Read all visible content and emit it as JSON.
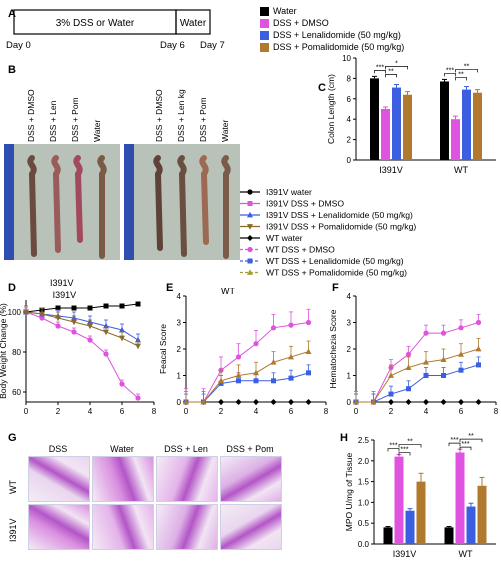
{
  "panels": {
    "A": "A",
    "B": "B",
    "C": "C",
    "D": "D",
    "E": "E",
    "F": "F",
    "G": "G",
    "H": "H"
  },
  "timeline": {
    "segment1": "3% DSS or Water",
    "segment2": "Water",
    "day0": "Day 0",
    "day6": "Day 6",
    "day7": "Day 7"
  },
  "legend_top": [
    {
      "label": "Water",
      "color": "#000000"
    },
    {
      "label": "DSS + DMSO",
      "color": "#e052e0"
    },
    {
      "label": "DSS + Lenalidomide (50 mg/kg)",
      "color": "#3b5fe0"
    },
    {
      "label": "DSS + Pomalidomide (50 mg/kg)",
      "color": "#b07a2e"
    }
  ],
  "photo_labels": {
    "left": [
      "DSS + DMSO",
      "DSS + Len",
      "DSS + Pom",
      "Water"
    ],
    "right": [
      "DSS + DMSO",
      "DSS + Len kg",
      "DSS + Pom",
      "Water"
    ],
    "caption": "I391V"
  },
  "legend_mid": [
    {
      "label": "I391V water",
      "color": "#000000",
      "marker": "circle"
    },
    {
      "label": "I391V DSS + DMSO",
      "color": "#e052e0",
      "marker": "square"
    },
    {
      "label": "I391V DSS + Lenalidomide (50 mg/kg)",
      "color": "#3b5fe0",
      "marker": "triangle"
    },
    {
      "label": "I391V DSS + Pomalidomide (50 mg/kg)",
      "color": "#8a6a2a",
      "marker": "tri-down"
    },
    {
      "label": "WT water",
      "color": "#000000",
      "marker": "diamond"
    },
    {
      "label": "WT DSS + DMSO",
      "color": "#e052e0",
      "marker": "circle-dash"
    },
    {
      "label": "WT DSS + Lenalidomide (50 mg/kg)",
      "color": "#3b5fe0",
      "marker": "square-dash"
    },
    {
      "label": "WT DSS + Pomalidomide (50 mg/kg)",
      "color": "#a89a3a",
      "marker": "triangle-dash"
    }
  ],
  "histology": {
    "cols": [
      "DSS",
      "Water",
      "DSS + Len",
      "DSS + Pom"
    ],
    "rows": [
      "WT",
      "I391V"
    ]
  },
  "chart_data": [
    {
      "id": "C",
      "type": "bar",
      "ylabel": "Colon Length (cm)",
      "ylim": [
        0,
        10
      ],
      "yticks": [
        0,
        2,
        4,
        6,
        8,
        10
      ],
      "categories": [
        "I391V",
        "WT"
      ],
      "series": [
        {
          "name": "Water",
          "color": "#000000",
          "values": [
            8.0,
            7.7
          ],
          "err": [
            0.2,
            0.2
          ]
        },
        {
          "name": "DSS + DMSO",
          "color": "#e052e0",
          "values": [
            5.0,
            4.0
          ],
          "err": [
            0.2,
            0.3
          ]
        },
        {
          "name": "DSS + Lenalidomide (50 mg/kg)",
          "color": "#3b5fe0",
          "values": [
            7.1,
            6.9
          ],
          "err": [
            0.3,
            0.3
          ]
        },
        {
          "name": "DSS + Pomalidomide (50 mg/kg)",
          "color": "#b07a2e",
          "values": [
            6.4,
            6.6
          ],
          "err": [
            0.3,
            0.3
          ]
        }
      ],
      "annotations": [
        "***",
        "**",
        "*",
        "***",
        "**",
        "**"
      ]
    },
    {
      "id": "D",
      "type": "line",
      "title": "I391V",
      "ylabel": "Body Weight Change (%)",
      "xlim": [
        0,
        8
      ],
      "xticks": [
        0,
        2,
        4,
        6,
        8
      ],
      "ylim": [
        55,
        106
      ],
      "yticks": [
        60,
        80,
        100
      ],
      "x": [
        0,
        1,
        2,
        3,
        4,
        5,
        6,
        7
      ],
      "series": [
        {
          "name": "I391V water",
          "color": "#000000",
          "marker": "square",
          "values": [
            100,
            101,
            102,
            102,
            102,
            103,
            103,
            104
          ],
          "err": 1
        },
        {
          "name": "I391V DSS + DMSO",
          "color": "#e052e0",
          "marker": "circle",
          "values": [
            100,
            97,
            93,
            90,
            86,
            79,
            64,
            57
          ],
          "err": 2
        },
        {
          "name": "I391V DSS + Lenalidomide (50 mg/kg)",
          "color": "#3b5fe0",
          "marker": "triangle",
          "values": [
            100,
            99,
            98,
            97,
            95,
            93,
            91,
            86
          ],
          "err": 3
        },
        {
          "name": "I391V DSS + Pomalidomide (50 mg/kg)",
          "color": "#8a6a2a",
          "marker": "tri-down",
          "values": [
            100,
            99,
            97,
            95,
            93,
            90,
            87,
            83
          ],
          "err": 3
        }
      ]
    },
    {
      "id": "E",
      "type": "line",
      "title": "WT",
      "ylabel": "Feacal Score",
      "xlim": [
        0,
        8
      ],
      "xticks": [
        0,
        2,
        4,
        6,
        8
      ],
      "ylim": [
        0,
        4
      ],
      "yticks": [
        0,
        1,
        2,
        3,
        4
      ],
      "x": [
        0,
        1,
        2,
        3,
        4,
        5,
        6,
        7
      ],
      "series": [
        {
          "name": "WT water",
          "color": "#000000",
          "marker": "diamond",
          "values": [
            0,
            0,
            0,
            0,
            0,
            0,
            0,
            0
          ],
          "err": 0
        },
        {
          "name": "WT DSS + DMSO",
          "color": "#e052e0",
          "marker": "circle",
          "values": [
            0,
            0,
            1.2,
            1.7,
            2.2,
            2.8,
            2.9,
            3.0
          ],
          "err": 0.5
        },
        {
          "name": "WT DSS + Lenalidomide (50 mg/kg)",
          "color": "#3b5fe0",
          "marker": "square",
          "values": [
            0,
            0,
            0.7,
            0.8,
            0.8,
            0.8,
            0.9,
            1.1
          ],
          "err": 0.3
        },
        {
          "name": "WT DSS + Pomalidomide (50 mg/kg)",
          "color": "#b07a2e",
          "marker": "triangle",
          "values": [
            0,
            0,
            0.8,
            1.0,
            1.1,
            1.5,
            1.7,
            1.9
          ],
          "err": 0.4
        }
      ]
    },
    {
      "id": "F",
      "type": "line",
      "ylabel": "Hematochezia Score",
      "xlim": [
        0,
        8
      ],
      "xticks": [
        0,
        2,
        4,
        6,
        8
      ],
      "ylim": [
        0,
        4
      ],
      "yticks": [
        0,
        1,
        2,
        3,
        4
      ],
      "x": [
        0,
        1,
        2,
        3,
        4,
        5,
        6,
        7
      ],
      "series": [
        {
          "name": "WT water",
          "color": "#000000",
          "marker": "diamond",
          "values": [
            0,
            0,
            0,
            0,
            0,
            0,
            0,
            0
          ],
          "err": 0
        },
        {
          "name": "WT DSS + DMSO",
          "color": "#e052e0",
          "marker": "circle",
          "values": [
            0,
            0,
            1.3,
            1.8,
            2.6,
            2.6,
            2.8,
            3.0
          ],
          "err": 0.3
        },
        {
          "name": "WT DSS + Lenalidomide (50 mg/kg)",
          "color": "#3b5fe0",
          "marker": "square",
          "values": [
            0,
            0,
            0.3,
            0.5,
            1.0,
            1.0,
            1.2,
            1.4
          ],
          "err": 0.3
        },
        {
          "name": "WT DSS + Pomalidomide (50 mg/kg)",
          "color": "#b07a2e",
          "marker": "triangle",
          "values": [
            0,
            0,
            1.0,
            1.3,
            1.5,
            1.6,
            1.8,
            2.0
          ],
          "err": 0.4
        }
      ]
    },
    {
      "id": "H",
      "type": "bar",
      "ylabel": "MPO U/mg of Tissue",
      "ylim": [
        0,
        2.5
      ],
      "yticks": [
        0,
        0.5,
        1.0,
        1.5,
        2.0,
        2.5
      ],
      "ytick_labels": [
        "0.0",
        "0.5",
        "1.0",
        "1.5",
        "2.0",
        "2.5"
      ],
      "categories": [
        "I391V",
        "WT"
      ],
      "series": [
        {
          "name": "Water",
          "color": "#000000",
          "values": [
            0.4,
            0.4
          ],
          "err": [
            0.02,
            0.02
          ]
        },
        {
          "name": "DSS + DMSO",
          "color": "#e052e0",
          "values": [
            2.1,
            2.2
          ],
          "err": [
            0.05,
            0.08
          ]
        },
        {
          "name": "DSS + Lenalidomide (50 mg/kg)",
          "color": "#3b5fe0",
          "values": [
            0.8,
            0.9
          ],
          "err": [
            0.05,
            0.08
          ]
        },
        {
          "name": "DSS + Pomalidomide (50 mg/kg)",
          "color": "#b07a2e",
          "values": [
            1.5,
            1.4
          ],
          "err": [
            0.2,
            0.2
          ]
        }
      ],
      "annotations": [
        "***",
        "***",
        "**",
        "***",
        "***",
        "**"
      ]
    }
  ]
}
